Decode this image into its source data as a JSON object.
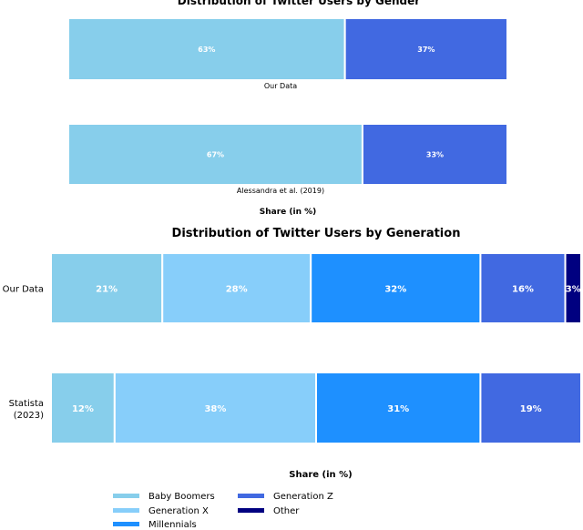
{
  "chart_data": [
    {
      "type": "bar",
      "orientation": "horizontal-stacked",
      "title": "Distribution of Twitter Users by Gender",
      "xlabel": "Share (in %)",
      "categories": [
        "Our Data",
        "Alessandra et al. (2019)"
      ],
      "series": [
        {
          "values": [
            63,
            67
          ],
          "color": "#87CEEB"
        },
        {
          "values": [
            37,
            33
          ],
          "color": "#4169E1"
        }
      ],
      "xlim": [
        0,
        100
      ]
    },
    {
      "type": "bar",
      "orientation": "horizontal-stacked",
      "title": "Distribution of Twitter Users by Generation",
      "xlabel": "Share (in %)",
      "categories": [
        "Our Data",
        "Statista (2023)"
      ],
      "series": [
        {
          "name": "Baby Boomers",
          "values": [
            21,
            12
          ],
          "color": "#87CEEB"
        },
        {
          "name": "Generation X",
          "values": [
            28,
            38
          ],
          "color": "#87CEFA"
        },
        {
          "name": "Millennials",
          "values": [
            32,
            31
          ],
          "color": "#1E90FF"
        },
        {
          "name": "Generation Z",
          "values": [
            16,
            19
          ],
          "color": "#4169E1"
        },
        {
          "name": "Other",
          "values": [
            3,
            0
          ],
          "color": "#000080"
        }
      ],
      "xlim": [
        0,
        100
      ],
      "legend": "bottom"
    }
  ]
}
